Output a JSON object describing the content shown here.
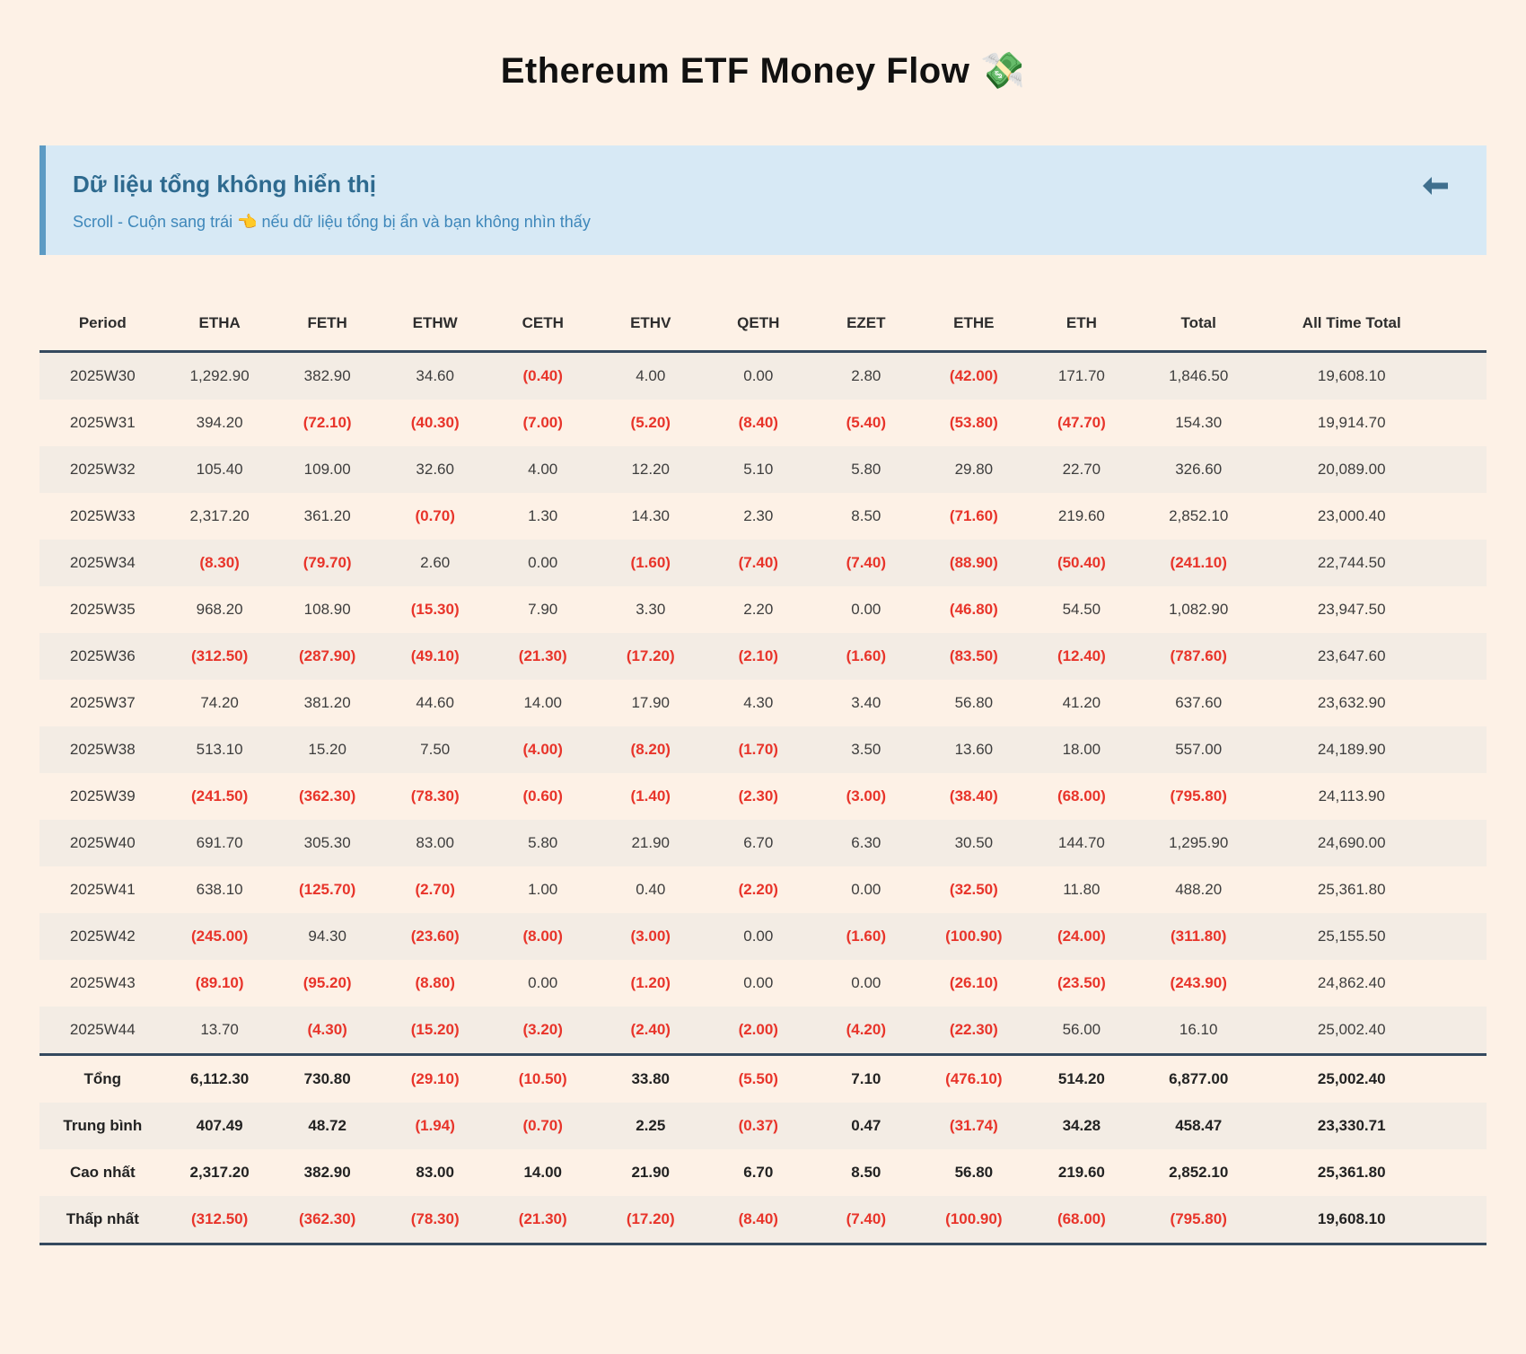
{
  "page": {
    "title": "Ethereum ETF Money Flow 💸"
  },
  "banner": {
    "heading": "Dữ liệu tổng không hiển thị",
    "subtext": "Scroll - Cuộn sang trái 👈 nếu dữ liệu tổng bị ẩn và bạn không nhìn thấy",
    "arrow_icon": "left-arrow"
  },
  "colors": {
    "page_background": "#fdf1e6",
    "row_stripe": "#f3ece4",
    "banner_background": "#d7e9f5",
    "banner_border": "#5d9bc4",
    "banner_heading": "#2e6a8f",
    "banner_subtext": "#3e87ba",
    "table_border": "#34495e",
    "negative_value": "#e8342a"
  },
  "table": {
    "columns": [
      "Period",
      "ETHA",
      "FETH",
      "ETHW",
      "CETH",
      "ETHV",
      "QETH",
      "EZET",
      "ETHE",
      "ETH",
      "Total",
      "All Time Total"
    ],
    "rows": [
      {
        "period": "2025W30",
        "values": [
          "1,292.90",
          "382.90",
          "34.60",
          "(0.40)",
          "4.00",
          "0.00",
          "2.80",
          "(42.00)",
          "171.70",
          "1,846.50",
          "19,608.10"
        ]
      },
      {
        "period": "2025W31",
        "values": [
          "394.20",
          "(72.10)",
          "(40.30)",
          "(7.00)",
          "(5.20)",
          "(8.40)",
          "(5.40)",
          "(53.80)",
          "(47.70)",
          "154.30",
          "19,914.70"
        ]
      },
      {
        "period": "2025W32",
        "values": [
          "105.40",
          "109.00",
          "32.60",
          "4.00",
          "12.20",
          "5.10",
          "5.80",
          "29.80",
          "22.70",
          "326.60",
          "20,089.00"
        ]
      },
      {
        "period": "2025W33",
        "values": [
          "2,317.20",
          "361.20",
          "(0.70)",
          "1.30",
          "14.30",
          "2.30",
          "8.50",
          "(71.60)",
          "219.60",
          "2,852.10",
          "23,000.40"
        ]
      },
      {
        "period": "2025W34",
        "values": [
          "(8.30)",
          "(79.70)",
          "2.60",
          "0.00",
          "(1.60)",
          "(7.40)",
          "(7.40)",
          "(88.90)",
          "(50.40)",
          "(241.10)",
          "22,744.50"
        ]
      },
      {
        "period": "2025W35",
        "values": [
          "968.20",
          "108.90",
          "(15.30)",
          "7.90",
          "3.30",
          "2.20",
          "0.00",
          "(46.80)",
          "54.50",
          "1,082.90",
          "23,947.50"
        ]
      },
      {
        "period": "2025W36",
        "values": [
          "(312.50)",
          "(287.90)",
          "(49.10)",
          "(21.30)",
          "(17.20)",
          "(2.10)",
          "(1.60)",
          "(83.50)",
          "(12.40)",
          "(787.60)",
          "23,647.60"
        ]
      },
      {
        "period": "2025W37",
        "values": [
          "74.20",
          "381.20",
          "44.60",
          "14.00",
          "17.90",
          "4.30",
          "3.40",
          "56.80",
          "41.20",
          "637.60",
          "23,632.90"
        ]
      },
      {
        "period": "2025W38",
        "values": [
          "513.10",
          "15.20",
          "7.50",
          "(4.00)",
          "(8.20)",
          "(1.70)",
          "3.50",
          "13.60",
          "18.00",
          "557.00",
          "24,189.90"
        ]
      },
      {
        "period": "2025W39",
        "values": [
          "(241.50)",
          "(362.30)",
          "(78.30)",
          "(0.60)",
          "(1.40)",
          "(2.30)",
          "(3.00)",
          "(38.40)",
          "(68.00)",
          "(795.80)",
          "24,113.90"
        ]
      },
      {
        "period": "2025W40",
        "values": [
          "691.70",
          "305.30",
          "83.00",
          "5.80",
          "21.90",
          "6.70",
          "6.30",
          "30.50",
          "144.70",
          "1,295.90",
          "24,690.00"
        ]
      },
      {
        "period": "2025W41",
        "values": [
          "638.10",
          "(125.70)",
          "(2.70)",
          "1.00",
          "0.40",
          "(2.20)",
          "0.00",
          "(32.50)",
          "11.80",
          "488.20",
          "25,361.80"
        ]
      },
      {
        "period": "2025W42",
        "values": [
          "(245.00)",
          "94.30",
          "(23.60)",
          "(8.00)",
          "(3.00)",
          "0.00",
          "(1.60)",
          "(100.90)",
          "(24.00)",
          "(311.80)",
          "25,155.50"
        ]
      },
      {
        "period": "2025W43",
        "values": [
          "(89.10)",
          "(95.20)",
          "(8.80)",
          "0.00",
          "(1.20)",
          "0.00",
          "0.00",
          "(26.10)",
          "(23.50)",
          "(243.90)",
          "24,862.40"
        ]
      },
      {
        "period": "2025W44",
        "values": [
          "13.70",
          "(4.30)",
          "(15.20)",
          "(3.20)",
          "(2.40)",
          "(2.00)",
          "(4.20)",
          "(22.30)",
          "56.00",
          "16.10",
          "25,002.40"
        ]
      }
    ],
    "summary": [
      {
        "label": "Tổng",
        "values": [
          "6,112.30",
          "730.80",
          "(29.10)",
          "(10.50)",
          "33.80",
          "(5.50)",
          "7.10",
          "(476.10)",
          "514.20",
          "6,877.00",
          "25,002.40"
        ]
      },
      {
        "label": "Trung bình",
        "values": [
          "407.49",
          "48.72",
          "(1.94)",
          "(0.70)",
          "2.25",
          "(0.37)",
          "0.47",
          "(31.74)",
          "34.28",
          "458.47",
          "23,330.71"
        ]
      },
      {
        "label": "Cao nhất",
        "values": [
          "2,317.20",
          "382.90",
          "83.00",
          "14.00",
          "21.90",
          "6.70",
          "8.50",
          "56.80",
          "219.60",
          "2,852.10",
          "25,361.80"
        ]
      },
      {
        "label": "Thấp nhất",
        "values": [
          "(312.50)",
          "(362.30)",
          "(78.30)",
          "(21.30)",
          "(17.20)",
          "(8.40)",
          "(7.40)",
          "(100.90)",
          "(68.00)",
          "(795.80)",
          "19,608.10"
        ]
      }
    ]
  }
}
